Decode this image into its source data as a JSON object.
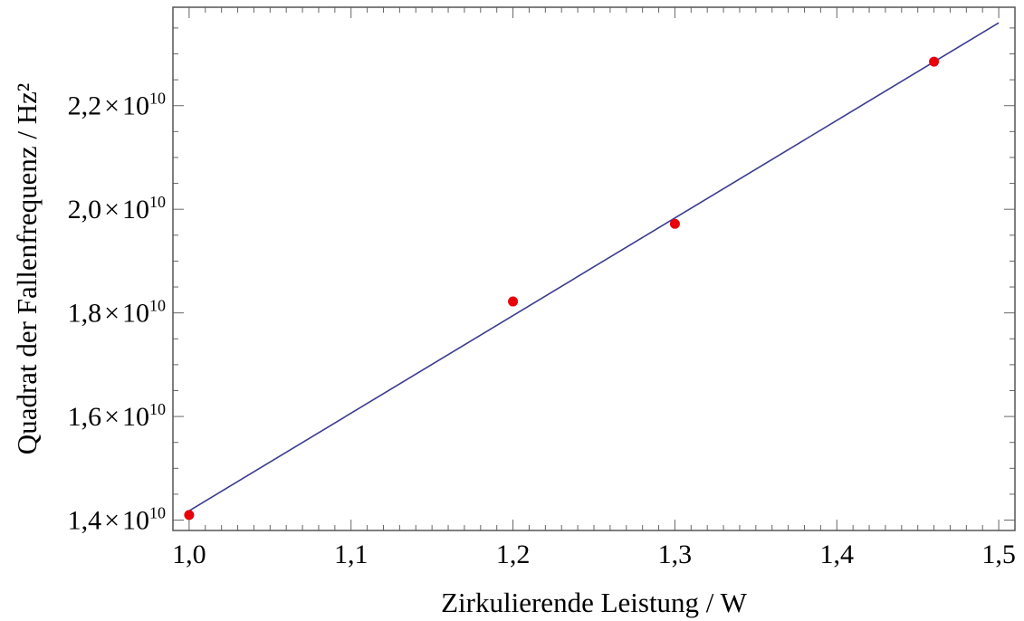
{
  "chart_data": {
    "type": "scatter",
    "xlabel": "Zirkulierende Leistung / W",
    "ylabel": "Quadrat der Fallenfrequenz / Hz²",
    "xlim": [
      0.99,
      1.51
    ],
    "ylim": [
      13.8,
      23.9
    ],
    "x_ticks": [
      {
        "value": 1.0,
        "label": "1,0"
      },
      {
        "value": 1.1,
        "label": "1,1"
      },
      {
        "value": 1.2,
        "label": "1,2"
      },
      {
        "value": 1.3,
        "label": "1,3"
      },
      {
        "value": 1.4,
        "label": "1,4"
      },
      {
        "value": 1.5,
        "label": "1,5"
      }
    ],
    "y_ticks": [
      {
        "value": 14,
        "mantissa": "1,4",
        "times": "×",
        "base": "10",
        "exponent": "10"
      },
      {
        "value": 16,
        "mantissa": "1,6",
        "times": "×",
        "base": "10",
        "exponent": "10"
      },
      {
        "value": 18,
        "mantissa": "1,8",
        "times": "×",
        "base": "10",
        "exponent": "10"
      },
      {
        "value": 20,
        "mantissa": "2,0",
        "times": "×",
        "base": "10",
        "exponent": "10"
      },
      {
        "value": 22,
        "mantissa": "2,2",
        "times": "×",
        "base": "10",
        "exponent": "10"
      }
    ],
    "y_scale_note": "y values in units of 1e9 Hz²",
    "series": [
      {
        "kind": "points",
        "color": "#e8000b",
        "x": [
          1.0,
          1.2,
          1.3,
          1.46
        ],
        "y": [
          14.1,
          18.22,
          19.72,
          22.85
        ]
      },
      {
        "kind": "fit-line",
        "color": "#3b3b8f",
        "x": [
          1.0,
          1.5
        ],
        "y": [
          14.18,
          23.6
        ]
      }
    ],
    "grid": false,
    "legend": "none"
  }
}
